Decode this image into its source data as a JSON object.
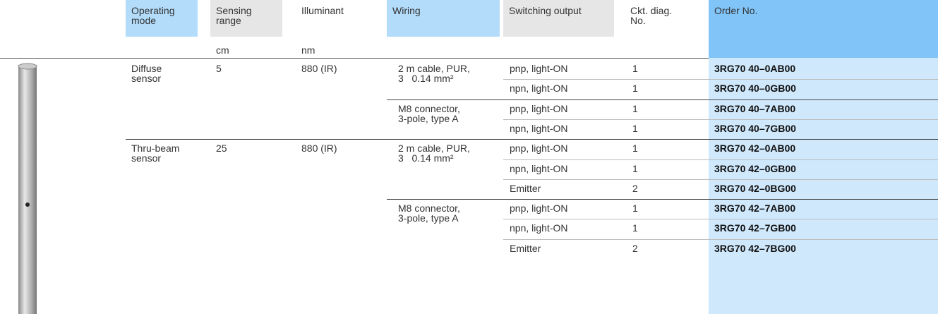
{
  "header": {
    "columns": [
      [
        "Operating",
        "mode"
      ],
      [
        "Sensing",
        "range"
      ],
      [
        "Illuminant"
      ],
      [
        "Wiring"
      ],
      [
        "Switching output"
      ],
      [
        "Ckt. diag.",
        "No."
      ],
      [
        "Order No."
      ]
    ],
    "units": {
      "sensing_range": "cm",
      "illuminant": "nm"
    }
  },
  "groups": [
    {
      "mode": [
        "Diffuse",
        "sensor"
      ],
      "range": "5",
      "illuminant": "880 (IR)",
      "wirings": [
        {
          "wiring": [
            "2 m cable, PUR,",
            "3   0.14 mm²"
          ],
          "outputs": [
            {
              "output": "pnp, light-ON",
              "diagram": "1",
              "order": "3RG70 40–0AB00"
            },
            {
              "output": "npn, light-ON",
              "diagram": "1",
              "order": "3RG70 40–0GB00"
            }
          ]
        },
        {
          "wiring": [
            "M8 connector,",
            "3-pole, type A"
          ],
          "outputs": [
            {
              "output": "pnp, light-ON",
              "diagram": "1",
              "order": "3RG70 40–7AB00"
            },
            {
              "output": "npn, light-ON",
              "diagram": "1",
              "order": "3RG70 40–7GB00"
            }
          ]
        }
      ]
    },
    {
      "mode": [
        "Thru-beam",
        "sensor"
      ],
      "range": "25",
      "illuminant": "880 (IR)",
      "wirings": [
        {
          "wiring": [
            "2 m cable, PUR,",
            "3   0.14 mm²"
          ],
          "outputs": [
            {
              "output": "pnp, light-ON",
              "diagram": "1",
              "order": "3RG70 42–0AB00"
            },
            {
              "output": "npn, light-ON",
              "diagram": "1",
              "order": "3RG70 42–0GB00"
            },
            {
              "output": "Emitter",
              "diagram": "2",
              "order": "3RG70 42–0BG00"
            }
          ]
        },
        {
          "wiring": [
            "M8 connector,",
            "3-pole, type A"
          ],
          "outputs": [
            {
              "output": "pnp, light-ON",
              "diagram": "1",
              "order": "3RG70 42–7AB00"
            },
            {
              "output": "npn, light-ON",
              "diagram": "1",
              "order": "3RG70 42–7GB00"
            },
            {
              "output": "Emitter",
              "diagram": "2",
              "order": "3RG70 42–7BG00"
            }
          ]
        }
      ]
    }
  ]
}
